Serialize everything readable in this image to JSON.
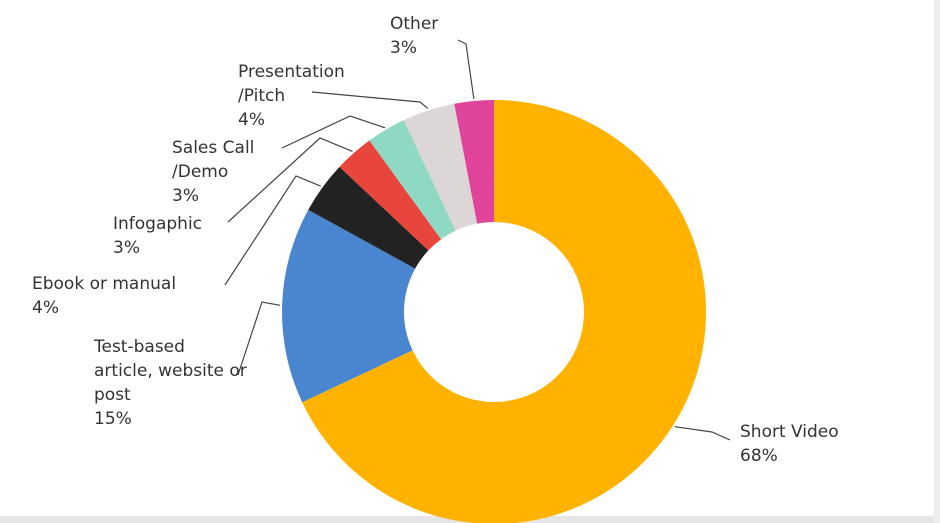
{
  "chart_data": {
    "type": "donut",
    "categories": [
      [
        "Short Video"
      ],
      [
        "Test-based",
        "article, website or",
        "post"
      ],
      [
        "Ebook or manual"
      ],
      [
        "Infogaphic"
      ],
      [
        "Sales Call",
        "/Demo"
      ],
      [
        "Presentation",
        "/Pitch"
      ],
      [
        "Other"
      ]
    ],
    "values": [
      68,
      15,
      4,
      3,
      3,
      4,
      3
    ],
    "value_labels": [
      "68%",
      "15%",
      "4%",
      "3%",
      "3%",
      "4%",
      "3%"
    ],
    "colors": [
      "#ffb300",
      "#4a86d0",
      "#222222",
      "#e8453c",
      "#8fd8c4",
      "#dcd6d6",
      "#e0449a"
    ]
  }
}
